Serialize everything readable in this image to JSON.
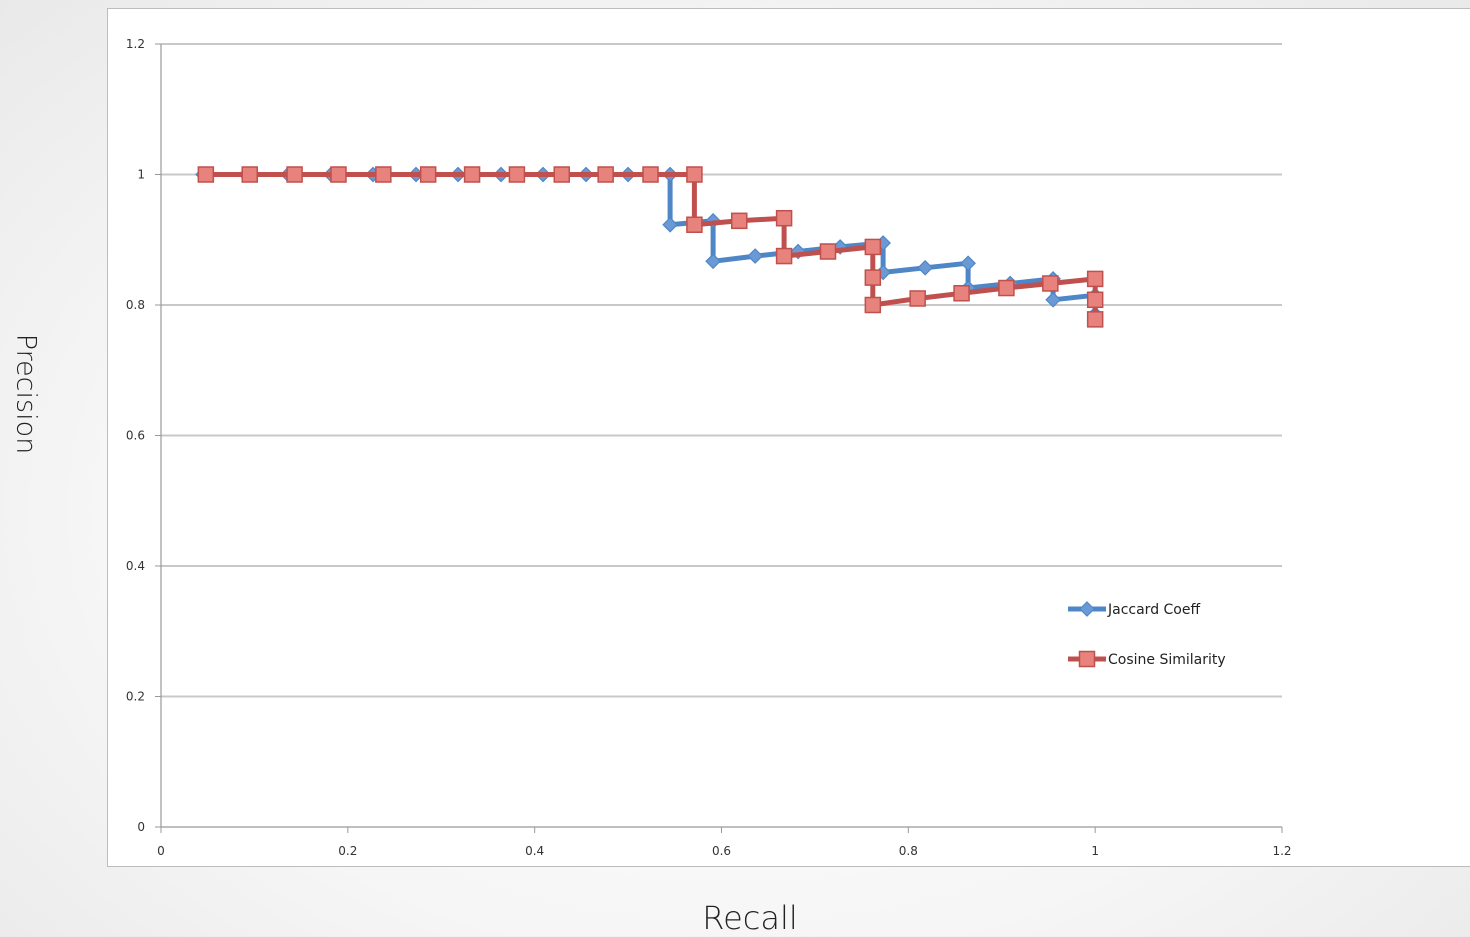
{
  "chart_data": {
    "type": "line",
    "xlabel": "Recall",
    "ylabel": "Precision",
    "xlim": [
      0,
      1.2
    ],
    "ylim": [
      0,
      1.2
    ],
    "x_ticks": [
      "0",
      "0.2",
      "0.4",
      "0.6",
      "0.8",
      "1",
      "1.2"
    ],
    "y_ticks": [
      "0",
      "0.2",
      "0.4",
      "0.6",
      "0.8",
      "1",
      "1.2"
    ],
    "grid": "horizontal",
    "legend_position": "lower-right",
    "series": [
      {
        "name": "Jaccard Coeff",
        "color": "#4f86c6",
        "marker": "diamond",
        "points": [
          [
            0.045,
            1.0
          ],
          [
            0.091,
            1.0
          ],
          [
            0.136,
            1.0
          ],
          [
            0.182,
            1.0
          ],
          [
            0.227,
            1.0
          ],
          [
            0.273,
            1.0
          ],
          [
            0.318,
            1.0
          ],
          [
            0.364,
            1.0
          ],
          [
            0.409,
            1.0
          ],
          [
            0.455,
            1.0
          ],
          [
            0.5,
            1.0
          ],
          [
            0.545,
            1.0
          ],
          [
            0.545,
            0.923
          ],
          [
            0.591,
            0.929
          ],
          [
            0.591,
            0.867
          ],
          [
            0.636,
            0.875
          ],
          [
            0.682,
            0.882
          ],
          [
            0.727,
            0.889
          ],
          [
            0.773,
            0.895
          ],
          [
            0.773,
            0.85
          ],
          [
            0.818,
            0.857
          ],
          [
            0.864,
            0.864
          ],
          [
            0.864,
            0.826
          ],
          [
            0.909,
            0.833
          ],
          [
            0.955,
            0.84
          ],
          [
            0.955,
            0.808
          ],
          [
            1.0,
            0.815
          ],
          [
            1.0,
            0.786
          ]
        ]
      },
      {
        "name": "Cosine Similarity",
        "color": "#c0504d",
        "marker": "square",
        "points": [
          [
            0.048,
            1.0
          ],
          [
            0.095,
            1.0
          ],
          [
            0.143,
            1.0
          ],
          [
            0.19,
            1.0
          ],
          [
            0.238,
            1.0
          ],
          [
            0.286,
            1.0
          ],
          [
            0.333,
            1.0
          ],
          [
            0.381,
            1.0
          ],
          [
            0.429,
            1.0
          ],
          [
            0.476,
            1.0
          ],
          [
            0.524,
            1.0
          ],
          [
            0.571,
            1.0
          ],
          [
            0.571,
            0.923
          ],
          [
            0.619,
            0.929
          ],
          [
            0.667,
            0.933
          ],
          [
            0.667,
            0.875
          ],
          [
            0.714,
            0.882
          ],
          [
            0.762,
            0.889
          ],
          [
            0.762,
            0.842
          ],
          [
            0.762,
            0.8
          ],
          [
            0.81,
            0.81
          ],
          [
            0.857,
            0.818
          ],
          [
            0.905,
            0.826
          ],
          [
            0.952,
            0.833
          ],
          [
            1.0,
            0.84
          ],
          [
            1.0,
            0.808
          ],
          [
            1.0,
            0.778
          ]
        ]
      }
    ]
  }
}
